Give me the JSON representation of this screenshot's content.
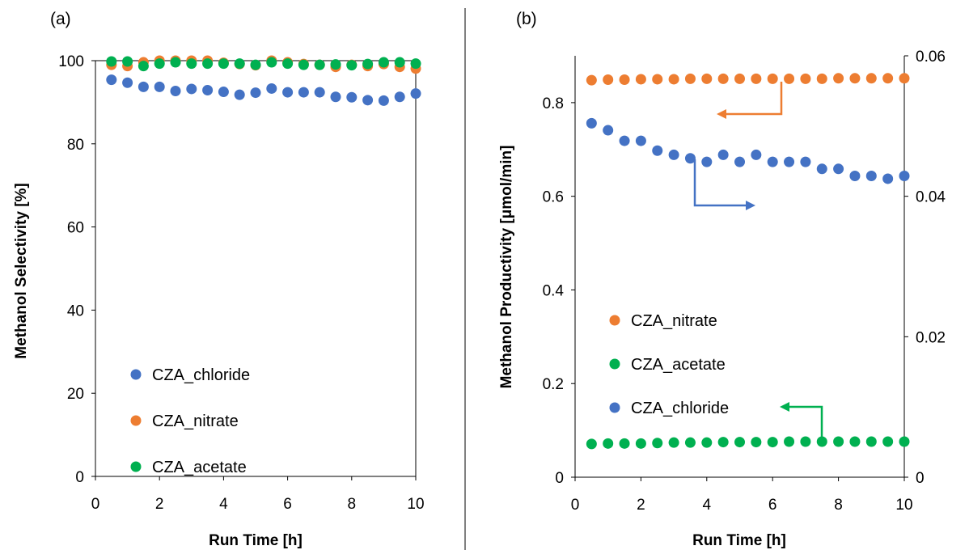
{
  "chart_data": [
    {
      "type": "scatter",
      "panel_label": "(a)",
      "xlabel": "Run Time [h]",
      "ylabel": "Methanol Selectivity [%]",
      "xlim": [
        0,
        10
      ],
      "ylim": [
        0,
        100
      ],
      "xticks": [
        "0",
        "2",
        "4",
        "6",
        "8",
        "10"
      ],
      "yticks": [
        "0",
        "20",
        "40",
        "60",
        "80",
        "100"
      ],
      "grid": false,
      "legend_placement": "bottom-left",
      "legend_order": [
        0,
        1,
        2
      ],
      "series": [
        {
          "name": "CZA_chloride",
          "color": "#4472C4",
          "x": [
            0.5,
            1,
            1.5,
            2,
            2.5,
            3,
            3.5,
            4,
            4.5,
            5,
            5.5,
            6,
            6.5,
            7,
            7.5,
            8,
            8.5,
            9,
            9.5,
            10
          ],
          "y": [
            95.4,
            94.7,
            93.7,
            93.7,
            92.7,
            93.2,
            92.9,
            92.5,
            91.8,
            92.3,
            93.3,
            92.4,
            92.4,
            92.4,
            91.3,
            91.2,
            90.5,
            90.4,
            91.3,
            92.1
          ]
        },
        {
          "name": "CZA_nitrate",
          "color": "#ED7D31",
          "x": [
            0.5,
            1,
            1.5,
            2,
            2.5,
            3,
            3.5,
            4,
            4.5,
            5,
            5.5,
            6,
            6.5,
            7,
            7.5,
            8,
            8.5,
            9,
            9.5,
            10
          ],
          "y": [
            99.0,
            98.7,
            99.6,
            100.0,
            100.0,
            100.0,
            100.0,
            99.5,
            99.2,
            98.9,
            100.0,
            99.6,
            99.2,
            99.0,
            98.5,
            99.0,
            98.7,
            99.2,
            98.5,
            98.1
          ]
        },
        {
          "name": "CZA_acetate",
          "color": "#00B050",
          "x": [
            0.5,
            1,
            1.5,
            2,
            2.5,
            3,
            3.5,
            4,
            4.5,
            5,
            5.5,
            6,
            6.5,
            7,
            7.5,
            8,
            8.5,
            9,
            9.5,
            10
          ],
          "y": [
            99.8,
            99.8,
            98.7,
            99.3,
            99.6,
            99.3,
            99.3,
            99.3,
            99.3,
            99.0,
            99.6,
            99.3,
            99.0,
            99.0,
            99.1,
            98.9,
            99.2,
            99.6,
            99.6,
            99.3
          ]
        }
      ]
    },
    {
      "type": "scatter",
      "panel_label": "(b)",
      "xlabel": "Run Time [h]",
      "ylabel": "Methanol Productivity [μmol/min]",
      "xlim": [
        0,
        10
      ],
      "ylim": [
        0,
        0.9
      ],
      "y2lim": [
        0,
        0.06
      ],
      "xticks": [
        "0",
        "2",
        "4",
        "6",
        "8",
        "10"
      ],
      "yticks": [
        "0",
        "0.2",
        "0.4",
        "0.6",
        "0.8"
      ],
      "y2ticks": [
        "0",
        "0.02",
        "0.04",
        "0.06"
      ],
      "grid": false,
      "legend_placement": "bottom-left",
      "legend_order": [
        1,
        2,
        0
      ],
      "series": [
        {
          "name": "CZA_chloride",
          "axis": "right",
          "color": "#4472C4",
          "x": [
            0.5,
            1,
            1.5,
            2,
            2.5,
            3,
            3.5,
            4,
            4.5,
            5,
            5.5,
            6,
            6.5,
            7,
            7.5,
            8,
            8.5,
            9,
            9.5,
            10
          ],
          "y": [
            0.0504,
            0.0494,
            0.0479,
            0.0479,
            0.0465,
            0.0459,
            0.0454,
            0.0449,
            0.0459,
            0.0449,
            0.0459,
            0.0449,
            0.0449,
            0.0449,
            0.0439,
            0.0439,
            0.0429,
            0.0429,
            0.0425,
            0.0429
          ]
        },
        {
          "name": "CZA_nitrate",
          "axis": "left",
          "color": "#ED7D31",
          "x": [
            0.5,
            1,
            1.5,
            2,
            2.5,
            3,
            3.5,
            4,
            4.5,
            5,
            5.5,
            6,
            6.5,
            7,
            7.5,
            8,
            8.5,
            9,
            9.5,
            10
          ],
          "y": [
            0.848,
            0.849,
            0.849,
            0.85,
            0.85,
            0.85,
            0.851,
            0.851,
            0.851,
            0.851,
            0.851,
            0.851,
            0.851,
            0.851,
            0.851,
            0.852,
            0.852,
            0.852,
            0.852,
            0.852
          ]
        },
        {
          "name": "CZA_acetate",
          "axis": "left",
          "color": "#00B050",
          "x": [
            0.5,
            1,
            1.5,
            2,
            2.5,
            3,
            3.5,
            4,
            4.5,
            5,
            5.5,
            6,
            6.5,
            7,
            7.5,
            8,
            8.5,
            9,
            9.5,
            10
          ],
          "y": [
            0.071,
            0.072,
            0.072,
            0.072,
            0.073,
            0.074,
            0.074,
            0.074,
            0.075,
            0.075,
            0.075,
            0.075,
            0.076,
            0.076,
            0.076,
            0.076,
            0.076,
            0.076,
            0.076,
            0.076
          ]
        }
      ],
      "annotations": [
        {
          "type": "arrow",
          "points_to": "left axis",
          "series": "CZA_nitrate",
          "color": "#ED7D31"
        },
        {
          "type": "arrow",
          "points_to": "right axis",
          "series": "CZA_chloride",
          "color": "#4472C4"
        },
        {
          "type": "arrow",
          "points_to": "left axis",
          "series": "CZA_acetate",
          "color": "#00B050"
        }
      ]
    }
  ]
}
